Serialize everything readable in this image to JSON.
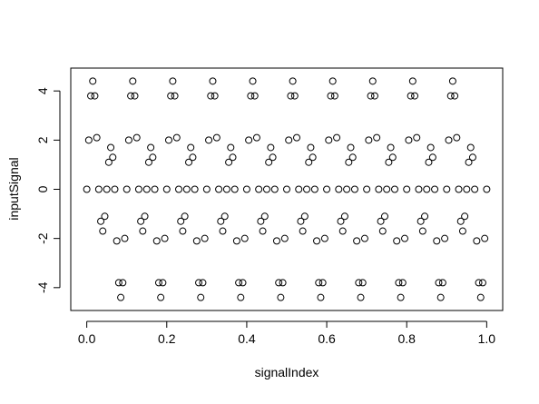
{
  "chart_data": {
    "type": "scatter",
    "xlabel": "signalIndex",
    "ylabel": "inputSignal",
    "color": "#000000",
    "x": [
      0,
      0.005,
      0.01,
      0.015,
      0.02,
      0.025,
      0.03,
      0.035,
      0.04,
      0.045,
      0.05,
      0.055,
      0.06,
      0.065,
      0.07,
      0.075,
      0.08,
      0.085,
      0.09,
      0.095,
      0.1,
      0.105,
      0.11,
      0.115,
      0.12,
      0.125,
      0.13,
      0.135,
      0.14,
      0.145,
      0.15,
      0.155,
      0.16,
      0.165,
      0.17,
      0.175,
      0.18,
      0.185,
      0.19,
      0.195,
      0.2,
      0.205,
      0.21,
      0.215,
      0.22,
      0.225,
      0.23,
      0.235,
      0.24,
      0.245,
      0.25,
      0.255,
      0.26,
      0.265,
      0.27,
      0.275,
      0.28,
      0.285,
      0.29,
      0.295,
      0.3,
      0.305,
      0.31,
      0.315,
      0.32,
      0.325,
      0.33,
      0.335,
      0.34,
      0.345,
      0.35,
      0.355,
      0.36,
      0.365,
      0.37,
      0.375,
      0.38,
      0.385,
      0.39,
      0.395,
      0.4,
      0.405,
      0.41,
      0.415,
      0.42,
      0.425,
      0.43,
      0.435,
      0.44,
      0.445,
      0.45,
      0.455,
      0.46,
      0.465,
      0.47,
      0.475,
      0.48,
      0.485,
      0.49,
      0.495,
      0.5,
      0.505,
      0.51,
      0.515,
      0.52,
      0.525,
      0.53,
      0.535,
      0.54,
      0.545,
      0.55,
      0.555,
      0.56,
      0.565,
      0.57,
      0.575,
      0.58,
      0.585,
      0.59,
      0.595,
      0.6,
      0.605,
      0.61,
      0.615,
      0.62,
      0.625,
      0.63,
      0.635,
      0.64,
      0.645,
      0.65,
      0.655,
      0.66,
      0.665,
      0.67,
      0.675,
      0.68,
      0.685,
      0.69,
      0.695,
      0.7,
      0.705,
      0.71,
      0.715,
      0.72,
      0.725,
      0.73,
      0.735,
      0.74,
      0.745,
      0.75,
      0.755,
      0.76,
      0.765,
      0.77,
      0.775,
      0.78,
      0.785,
      0.79,
      0.795,
      0.8,
      0.805,
      0.81,
      0.815,
      0.82,
      0.825,
      0.83,
      0.835,
      0.84,
      0.845,
      0.85,
      0.855,
      0.86,
      0.865,
      0.87,
      0.875,
      0.88,
      0.885,
      0.89,
      0.895,
      0.9,
      0.905,
      0.91,
      0.915,
      0.92,
      0.925,
      0.93,
      0.935,
      0.94,
      0.945,
      0.95,
      0.955,
      0.96,
      0.965,
      0.97,
      0.975,
      0.98,
      0.985,
      0.99,
      0.995,
      1
    ],
    "values": [
      0,
      2.0,
      3.8,
      4.4,
      3.8,
      2.1,
      0.0,
      -1.3,
      -1.7,
      -1.1,
      0.0,
      1.1,
      1.7,
      1.3,
      0.0,
      -2.1,
      -3.8,
      -4.4,
      -3.8,
      -2.0,
      0,
      2.0,
      3.8,
      4.4,
      3.8,
      2.1,
      0.0,
      -1.3,
      -1.7,
      -1.1,
      0.0,
      1.1,
      1.7,
      1.3,
      0.0,
      -2.1,
      -3.8,
      -4.4,
      -3.8,
      -2.0,
      0,
      2.0,
      3.8,
      4.4,
      3.8,
      2.1,
      0.0,
      -1.3,
      -1.7,
      -1.1,
      0.0,
      1.1,
      1.7,
      1.3,
      0.0,
      -2.1,
      -3.8,
      -4.4,
      -3.8,
      -2.0,
      0,
      2.0,
      3.8,
      4.4,
      3.8,
      2.1,
      0.0,
      -1.3,
      -1.7,
      -1.1,
      0.0,
      1.1,
      1.7,
      1.3,
      0.0,
      -2.1,
      -3.8,
      -4.4,
      -3.8,
      -2.0,
      0,
      2.0,
      3.8,
      4.4,
      3.8,
      2.1,
      0.0,
      -1.3,
      -1.7,
      -1.1,
      0.0,
      1.1,
      1.7,
      1.3,
      0.0,
      -2.1,
      -3.8,
      -4.4,
      -3.8,
      -2.0,
      0,
      2.0,
      3.8,
      4.4,
      3.8,
      2.1,
      0.0,
      -1.3,
      -1.7,
      -1.1,
      0.0,
      1.1,
      1.7,
      1.3,
      0.0,
      -2.1,
      -3.8,
      -4.4,
      -3.8,
      -2.0,
      0,
      2.0,
      3.8,
      4.4,
      3.8,
      2.1,
      0.0,
      -1.3,
      -1.7,
      -1.1,
      0.0,
      1.1,
      1.7,
      1.3,
      0.0,
      -2.1,
      -3.8,
      -4.4,
      -3.8,
      -2.0,
      0,
      2.0,
      3.8,
      4.4,
      3.8,
      2.1,
      0.0,
      -1.3,
      -1.7,
      -1.1,
      0.0,
      1.1,
      1.7,
      1.3,
      0.0,
      -2.1,
      -3.8,
      -4.4,
      -3.8,
      -2.0,
      0,
      2.0,
      3.8,
      4.4,
      3.8,
      2.1,
      0.0,
      -1.3,
      -1.7,
      -1.1,
      0.0,
      1.1,
      1.7,
      1.3,
      0.0,
      -2.1,
      -3.8,
      -4.4,
      -3.8,
      -2.0,
      0,
      2.0,
      3.8,
      4.4,
      3.8,
      2.1,
      0.0,
      -1.3,
      -1.7,
      -1.1,
      0.0,
      1.1,
      1.7,
      1.3,
      0.0,
      -2.1,
      -3.8,
      -4.4,
      -3.8,
      -2.0,
      0
    ],
    "xlim": [
      -0.04,
      1.04
    ],
    "xticks": [
      {
        "value": 0,
        "label": "0.0"
      },
      0.2,
      0.4,
      0.6,
      0.8,
      {
        "value": 1,
        "label": "1.0"
      }
    ],
    "ylim": [
      -4.93,
      4.93
    ],
    "yticks": [
      -4,
      -2,
      0,
      2,
      4
    ]
  }
}
